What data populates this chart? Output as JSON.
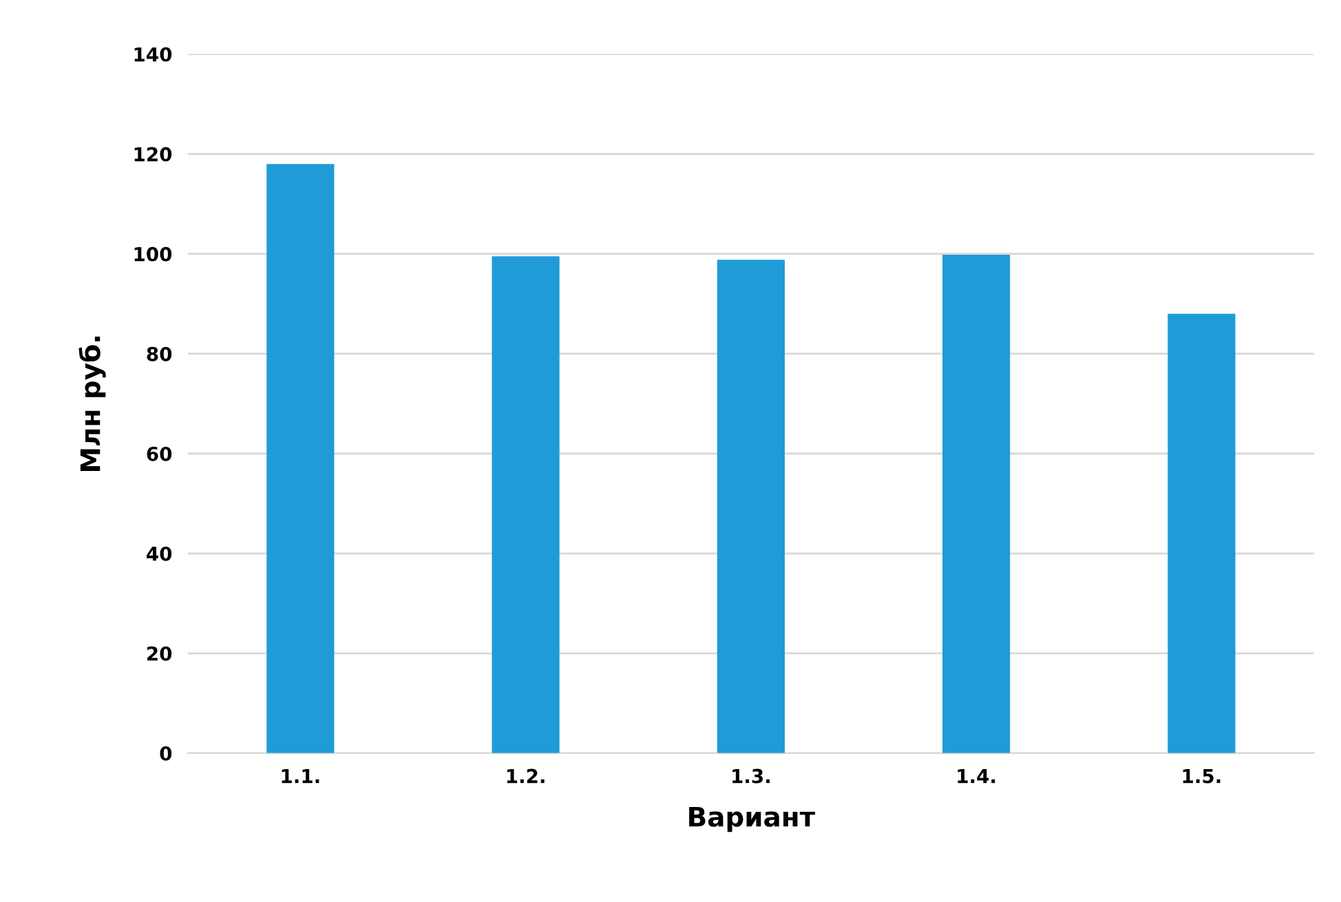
{
  "chart_data": {
    "type": "bar",
    "xlabel": "Вариант",
    "ylabel": "Млн руб.",
    "categories": [
      "1.1.",
      "1.2.",
      "1.3.",
      "1.4.",
      "1.5."
    ],
    "values": [
      118,
      99.5,
      98.8,
      99.8,
      88
    ],
    "color": "#1f9bd8",
    "ylim": [
      0,
      140
    ],
    "yticks": [
      0,
      20,
      40,
      60,
      80,
      100,
      120,
      140
    ],
    "grid": "y"
  }
}
